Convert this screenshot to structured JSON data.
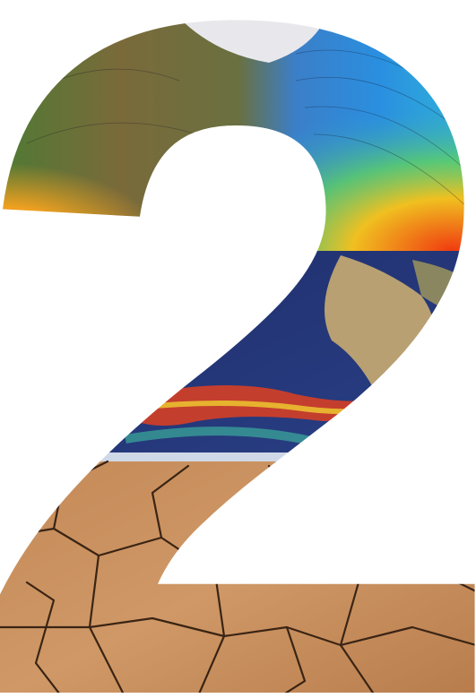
{
  "numeral": "2"
}
